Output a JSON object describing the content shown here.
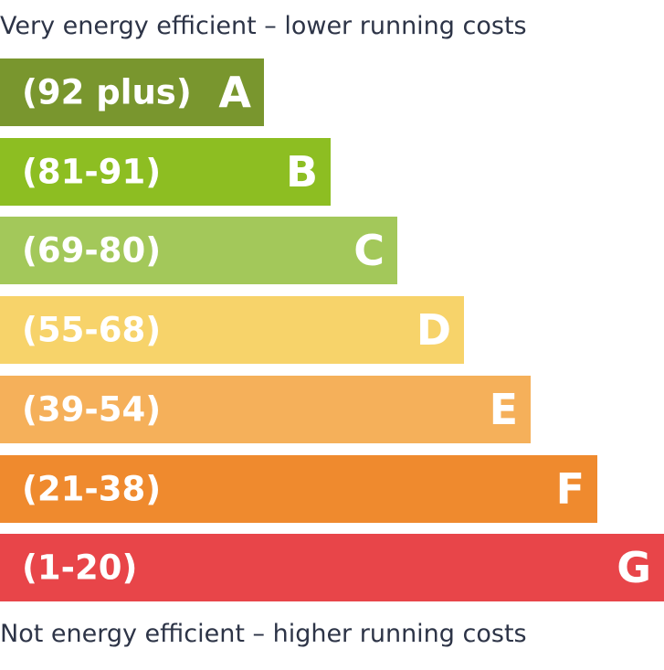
{
  "captions": {
    "top": "Very energy efficient – lower running costs",
    "bottom": "Not energy efficient – higher running costs"
  },
  "chart_data": {
    "type": "bar",
    "orientation": "horizontal",
    "categories": [
      "A",
      "B",
      "C",
      "D",
      "E",
      "F",
      "G"
    ],
    "range_labels": [
      "(92 plus)",
      "(81-91)",
      "(69-80)",
      "(55-68)",
      "(39-54)",
      "(21-38)",
      "(1-20)"
    ],
    "values": [
      1,
      2,
      3,
      4,
      5,
      6,
      7
    ],
    "colors": [
      "#79962e",
      "#8dbe22",
      "#a3c85a",
      "#f7d36a",
      "#f5b05a",
      "#ef8a2e",
      "#e84549"
    ]
  }
}
